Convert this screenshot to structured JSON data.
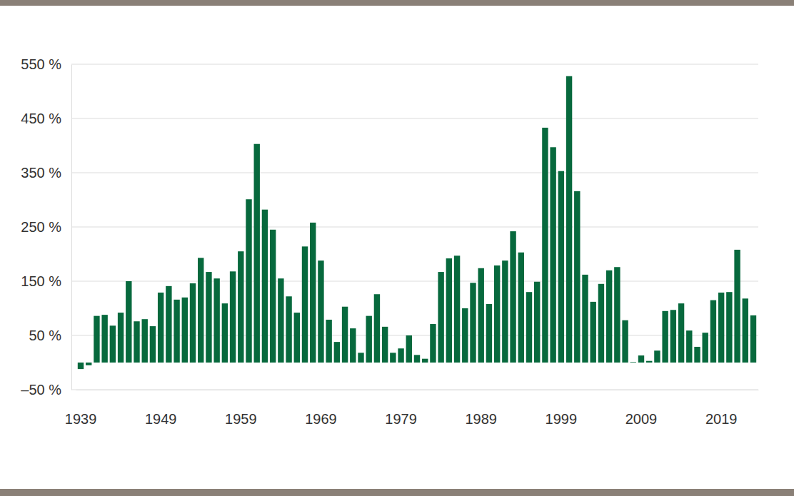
{
  "chart_data": {
    "type": "bar",
    "categories": [
      1939,
      null,
      null,
      null,
      null,
      null,
      null,
      null,
      null,
      null,
      1949,
      null,
      null,
      null,
      null,
      null,
      null,
      null,
      null,
      null,
      1959,
      null,
      null,
      null,
      null,
      null,
      null,
      null,
      null,
      null,
      1969,
      null,
      null,
      null,
      null,
      null,
      null,
      null,
      null,
      null,
      1979,
      null,
      null,
      null,
      null,
      null,
      null,
      null,
      null,
      null,
      1989,
      null,
      null,
      null,
      null,
      null,
      null,
      null,
      null,
      null,
      1999,
      null,
      null,
      null,
      null,
      null,
      null,
      null,
      null,
      null,
      2009,
      null,
      null,
      null,
      null,
      null,
      null,
      null,
      null,
      null,
      2019,
      null,
      null,
      null,
      null
    ],
    "values": [
      -12,
      -5,
      86,
      88,
      68,
      92,
      150,
      76,
      80,
      67,
      129,
      141,
      116,
      120,
      146,
      193,
      167,
      155,
      109,
      168,
      205,
      301,
      403,
      282,
      245,
      155,
      122,
      92,
      214,
      258,
      188,
      79,
      38,
      103,
      63,
      18,
      86,
      126,
      66,
      18,
      26,
      50,
      14,
      7,
      71,
      167,
      192,
      197,
      100,
      147,
      174,
      108,
      179,
      188,
      242,
      203,
      130,
      149,
      433,
      397,
      353,
      528,
      316,
      162,
      112,
      145,
      170,
      176,
      78,
      1,
      13,
      3,
      22,
      95,
      97,
      109,
      59,
      29,
      55,
      115,
      129,
      130,
      208,
      118,
      87
    ],
    "color": "#07693d",
    "ylim": [
      -50,
      550
    ],
    "yticks": [
      {
        "value": -50,
        "label": "–50 %"
      },
      {
        "value": 50,
        "label": "50 %"
      },
      {
        "value": 150,
        "label": "150 %"
      },
      {
        "value": 250,
        "label": "250 %"
      },
      {
        "value": 350,
        "label": "350 %"
      },
      {
        "value": 450,
        "label": "450 %"
      },
      {
        "value": 550,
        "label": "550 %"
      }
    ],
    "grid": true
  }
}
